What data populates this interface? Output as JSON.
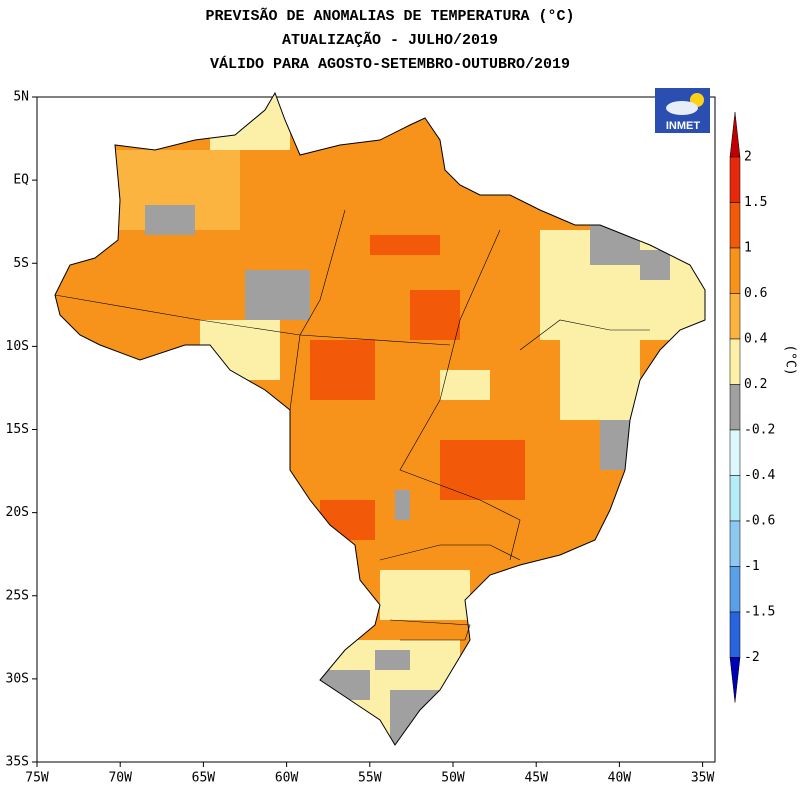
{
  "header": {
    "lines": [
      "PREVISÃO DE ANOMALIAS DE TEMPERATURA (°C)",
      "ATUALIZAÇÃO - JULHO/2019",
      "VÁLIDO PARA AGOSTO-SETEMBRO-OUTUBRO/2019"
    ]
  },
  "map": {
    "lat_labels": [
      "5N",
      "EQ",
      "5S",
      "10S",
      "15S",
      "20S",
      "25S",
      "30S",
      "35S"
    ],
    "lon_labels": [
      "75W",
      "70W",
      "65W",
      "60W",
      "55W",
      "50W",
      "45W",
      "40W",
      "35W"
    ]
  },
  "logo": "INMET",
  "colorbar": {
    "unit": "(°C)",
    "levels": [
      2,
      1.5,
      1,
      0.6,
      0.4,
      0.2,
      -0.2,
      -0.4,
      -0.6,
      -1,
      -1.5,
      -2
    ],
    "colors": [
      "#c00000",
      "#e8280a",
      "#f25a0a",
      "#f7931a",
      "#fbb440",
      "#fcf0a8",
      "#a0a0a0",
      "#dcf8fc",
      "#b4ecf8",
      "#8cc8f0",
      "#5aa0e8",
      "#2864dc",
      "#0000b4"
    ]
  }
}
